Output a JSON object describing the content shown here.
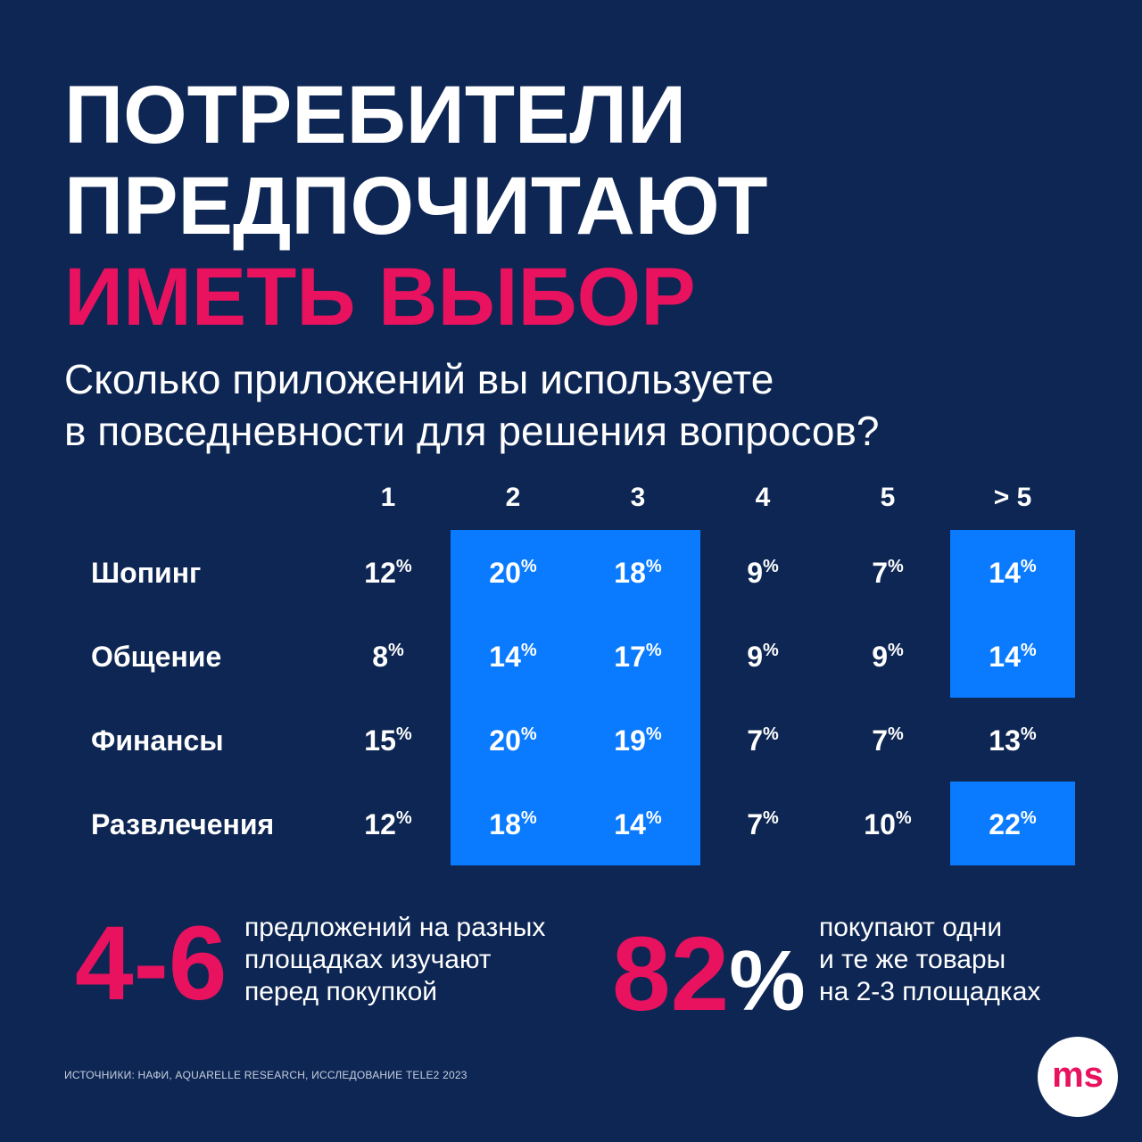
{
  "title": {
    "line1": "ПОТРЕБИТЕЛИ",
    "line2": "ПРЕДПОЧИТАЮТ",
    "line3": "ИМЕТЬ ВЫБОР"
  },
  "question": {
    "line1": "Сколько приложений вы используете",
    "line2": "в повседневности для решения вопросов?"
  },
  "colors": {
    "background": "#0d2653",
    "accent": "#e8125f",
    "highlight": "#0a7bff"
  },
  "chart_data": {
    "type": "table",
    "columns": [
      "1",
      "2",
      "3",
      "4",
      "5",
      "> 5"
    ],
    "rows": [
      {
        "label": "Шопинг",
        "values": [
          "12",
          "20",
          "18",
          "9",
          "7",
          "14"
        ]
      },
      {
        "label": "Общение",
        "values": [
          "8",
          "14",
          "17",
          "9",
          "9",
          "14"
        ]
      },
      {
        "label": "Финансы",
        "values": [
          "15",
          "20",
          "19",
          "7",
          "7",
          "13"
        ]
      },
      {
        "label": "Развлечения",
        "values": [
          "12",
          "18",
          "14",
          "7",
          "10",
          "22"
        ]
      }
    ],
    "unit": "%",
    "highlighted": [
      [
        false,
        true,
        true,
        false,
        false,
        true
      ],
      [
        false,
        true,
        true,
        false,
        false,
        true
      ],
      [
        false,
        true,
        true,
        false,
        false,
        false
      ],
      [
        false,
        true,
        true,
        false,
        false,
        true
      ]
    ]
  },
  "stats": [
    {
      "value": "4-6",
      "text": [
        "предложений на разных",
        "площадках изучают",
        "перед покупкой"
      ]
    },
    {
      "value": "82",
      "unit": "%",
      "text": [
        "покупают одни",
        "и те же товары",
        "на 2-3 площадках"
      ]
    }
  ],
  "sources": "ИСТОЧНИКИ: НАФИ,  AQUARELLE RESEARCH, ИССЛЕДОВАНИЕ TELE2 2023",
  "logo": {
    "text": "ms"
  }
}
